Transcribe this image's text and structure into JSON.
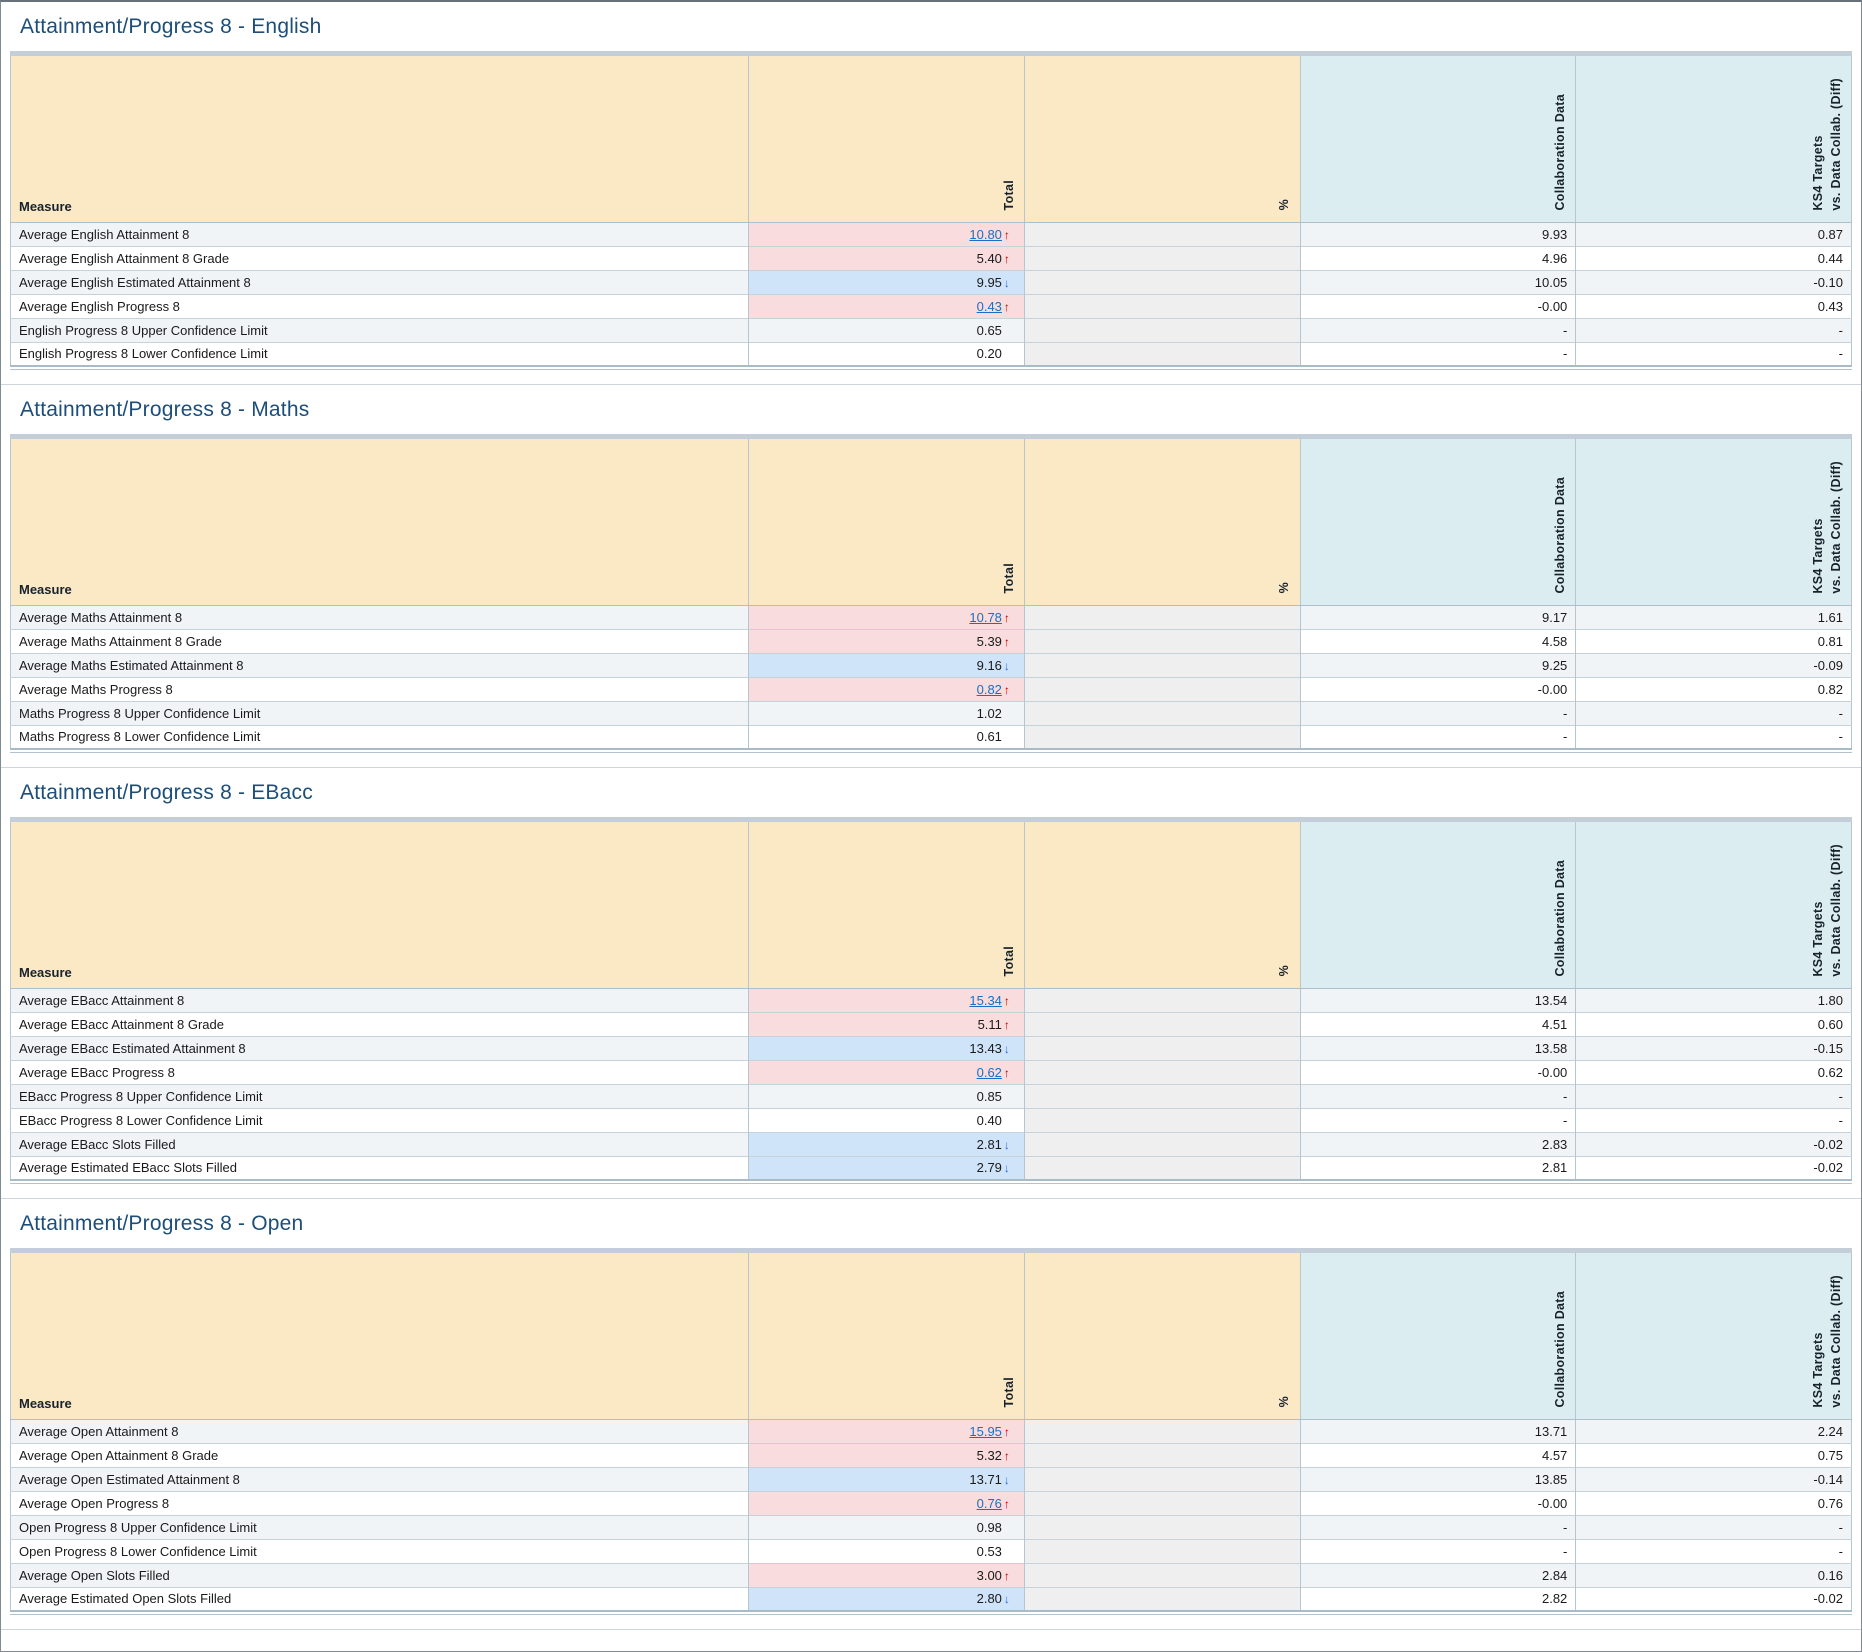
{
  "columns": {
    "measure": "Measure",
    "total": "Total",
    "percent": "%",
    "collaboration": "Collaboration Data",
    "ks4_targets": "KS4 Targets\nvs. Data Collab. (Diff)"
  },
  "icons": {
    "up_arrow": "↑",
    "down_arrow": "↓"
  },
  "colors": {
    "title": "#1d4e79",
    "header_cream": "#fbe9c6",
    "header_teal": "#dbedf0",
    "row_stripe": "#f0f4f7",
    "percent_cell_gray": "#efefef",
    "highlight_pink": "#f9dcdd",
    "highlight_blue": "#cfe3f9",
    "link_blue": "#1a6fc4",
    "arrow_up_red": "#c00000",
    "arrow_down_blue": "#2f6fd6"
  },
  "sections": [
    {
      "title": "Attainment/Progress 8 - English",
      "rows": [
        {
          "measure": "Average English Attainment 8",
          "total": "10.80",
          "link": true,
          "arrow": "up",
          "highlight": "pink",
          "percent": "",
          "collaboration": "9.93",
          "ks4_diff": "0.87"
        },
        {
          "measure": "Average English Attainment 8 Grade",
          "total": "5.40",
          "link": false,
          "arrow": "up",
          "highlight": "pink",
          "percent": "",
          "collaboration": "4.96",
          "ks4_diff": "0.44"
        },
        {
          "measure": "Average English Estimated Attainment 8",
          "total": "9.95",
          "link": false,
          "arrow": "down",
          "highlight": "blue",
          "percent": "",
          "collaboration": "10.05",
          "ks4_diff": "-0.10"
        },
        {
          "measure": "Average English Progress 8",
          "total": "0.43",
          "link": true,
          "arrow": "up",
          "highlight": "pink",
          "percent": "",
          "collaboration": "-0.00",
          "ks4_diff": "0.43"
        },
        {
          "measure": "English Progress 8 Upper Confidence Limit",
          "total": "0.65",
          "link": false,
          "arrow": null,
          "highlight": null,
          "percent": "",
          "collaboration": "-",
          "ks4_diff": "-"
        },
        {
          "measure": "English Progress 8 Lower Confidence Limit",
          "total": "0.20",
          "link": false,
          "arrow": null,
          "highlight": null,
          "percent": "",
          "collaboration": "-",
          "ks4_diff": "-"
        }
      ]
    },
    {
      "title": "Attainment/Progress 8 - Maths",
      "rows": [
        {
          "measure": "Average Maths Attainment 8",
          "total": "10.78",
          "link": true,
          "arrow": "up",
          "highlight": "pink",
          "percent": "",
          "collaboration": "9.17",
          "ks4_diff": "1.61"
        },
        {
          "measure": "Average Maths Attainment 8 Grade",
          "total": "5.39",
          "link": false,
          "arrow": "up",
          "highlight": "pink",
          "percent": "",
          "collaboration": "4.58",
          "ks4_diff": "0.81"
        },
        {
          "measure": "Average Maths Estimated Attainment 8",
          "total": "9.16",
          "link": false,
          "arrow": "down",
          "highlight": "blue",
          "percent": "",
          "collaboration": "9.25",
          "ks4_diff": "-0.09"
        },
        {
          "measure": "Average Maths Progress 8",
          "total": "0.82",
          "link": true,
          "arrow": "up",
          "highlight": "pink",
          "percent": "",
          "collaboration": "-0.00",
          "ks4_diff": "0.82"
        },
        {
          "measure": "Maths Progress 8 Upper Confidence Limit",
          "total": "1.02",
          "link": false,
          "arrow": null,
          "highlight": null,
          "percent": "",
          "collaboration": "-",
          "ks4_diff": "-"
        },
        {
          "measure": "Maths Progress 8 Lower Confidence Limit",
          "total": "0.61",
          "link": false,
          "arrow": null,
          "highlight": null,
          "percent": "",
          "collaboration": "-",
          "ks4_diff": "-"
        }
      ]
    },
    {
      "title": "Attainment/Progress 8 - EBacc",
      "rows": [
        {
          "measure": "Average EBacc Attainment 8",
          "total": "15.34",
          "link": true,
          "arrow": "up",
          "highlight": "pink",
          "percent": "",
          "collaboration": "13.54",
          "ks4_diff": "1.80"
        },
        {
          "measure": "Average EBacc Attainment 8 Grade",
          "total": "5.11",
          "link": false,
          "arrow": "up",
          "highlight": "pink",
          "percent": "",
          "collaboration": "4.51",
          "ks4_diff": "0.60"
        },
        {
          "measure": "Average EBacc Estimated Attainment 8",
          "total": "13.43",
          "link": false,
          "arrow": "down",
          "highlight": "blue",
          "percent": "",
          "collaboration": "13.58",
          "ks4_diff": "-0.15"
        },
        {
          "measure": "Average EBacc Progress 8",
          "total": "0.62",
          "link": true,
          "arrow": "up",
          "highlight": "pink",
          "percent": "",
          "collaboration": "-0.00",
          "ks4_diff": "0.62"
        },
        {
          "measure": "EBacc Progress 8 Upper Confidence Limit",
          "total": "0.85",
          "link": false,
          "arrow": null,
          "highlight": null,
          "percent": "",
          "collaboration": "-",
          "ks4_diff": "-"
        },
        {
          "measure": "EBacc Progress 8 Lower Confidence Limit",
          "total": "0.40",
          "link": false,
          "arrow": null,
          "highlight": null,
          "percent": "",
          "collaboration": "-",
          "ks4_diff": "-"
        },
        {
          "measure": "Average EBacc Slots Filled",
          "total": "2.81",
          "link": false,
          "arrow": "down",
          "highlight": "blue",
          "percent": "",
          "collaboration": "2.83",
          "ks4_diff": "-0.02"
        },
        {
          "measure": "Average Estimated EBacc Slots Filled",
          "total": "2.79",
          "link": false,
          "arrow": "down",
          "highlight": "blue",
          "percent": "",
          "collaboration": "2.81",
          "ks4_diff": "-0.02"
        }
      ]
    },
    {
      "title": "Attainment/Progress 8 - Open",
      "rows": [
        {
          "measure": "Average Open Attainment 8",
          "total": "15.95",
          "link": true,
          "arrow": "up",
          "highlight": "pink",
          "percent": "",
          "collaboration": "13.71",
          "ks4_diff": "2.24"
        },
        {
          "measure": "Average Open Attainment 8 Grade",
          "total": "5.32",
          "link": false,
          "arrow": "up",
          "highlight": "pink",
          "percent": "",
          "collaboration": "4.57",
          "ks4_diff": "0.75"
        },
        {
          "measure": "Average Open Estimated Attainment 8",
          "total": "13.71",
          "link": false,
          "arrow": "down",
          "highlight": "blue",
          "percent": "",
          "collaboration": "13.85",
          "ks4_diff": "-0.14"
        },
        {
          "measure": "Average Open Progress 8",
          "total": "0.76",
          "link": true,
          "arrow": "up",
          "highlight": "pink",
          "percent": "",
          "collaboration": "-0.00",
          "ks4_diff": "0.76"
        },
        {
          "measure": "Open Progress 8 Upper Confidence Limit",
          "total": "0.98",
          "link": false,
          "arrow": null,
          "highlight": null,
          "percent": "",
          "collaboration": "-",
          "ks4_diff": "-"
        },
        {
          "measure": "Open Progress 8 Lower Confidence Limit",
          "total": "0.53",
          "link": false,
          "arrow": null,
          "highlight": null,
          "percent": "",
          "collaboration": "-",
          "ks4_diff": "-"
        },
        {
          "measure": "Average Open Slots Filled",
          "total": "3.00",
          "link": false,
          "arrow": "up",
          "highlight": "pink",
          "percent": "",
          "collaboration": "2.84",
          "ks4_diff": "0.16"
        },
        {
          "measure": "Average Estimated Open Slots Filled",
          "total": "2.80",
          "link": false,
          "arrow": "down",
          "highlight": "blue",
          "percent": "",
          "collaboration": "2.82",
          "ks4_diff": "-0.02"
        }
      ]
    }
  ]
}
